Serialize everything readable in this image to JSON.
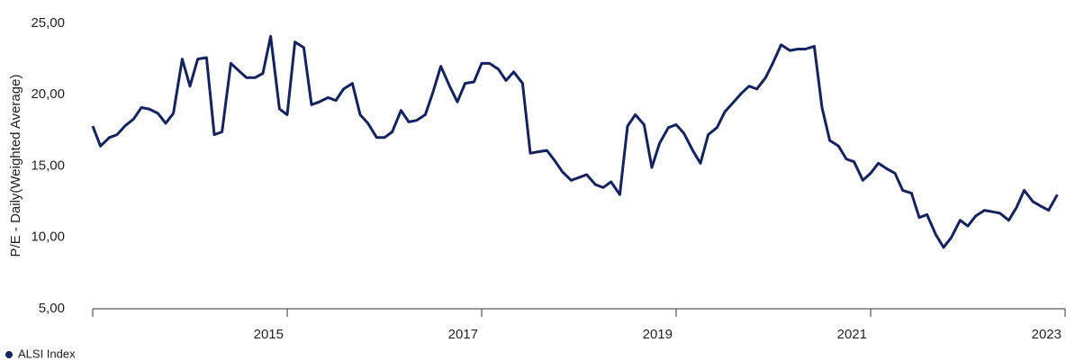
{
  "chart_data": {
    "type": "line",
    "y_label": "P/E - Daily(Weighted Average)",
    "x": [
      2013,
      2013.08,
      2013.17,
      2013.25,
      2013.33,
      2013.42,
      2013.5,
      2013.58,
      2013.67,
      2013.75,
      2013.83,
      2013.92,
      2014,
      2014.08,
      2014.17,
      2014.25,
      2014.33,
      2014.42,
      2014.5,
      2014.58,
      2014.67,
      2014.75,
      2014.83,
      2014.92,
      2015,
      2015.08,
      2015.17,
      2015.25,
      2015.33,
      2015.42,
      2015.5,
      2015.58,
      2015.67,
      2015.75,
      2015.83,
      2015.92,
      2016,
      2016.08,
      2016.17,
      2016.25,
      2016.33,
      2016.42,
      2016.5,
      2016.58,
      2016.67,
      2016.75,
      2016.83,
      2016.92,
      2017,
      2017.08,
      2017.17,
      2017.25,
      2017.33,
      2017.42,
      2017.5,
      2017.58,
      2017.67,
      2017.75,
      2017.83,
      2017.92,
      2018,
      2018.08,
      2018.17,
      2018.25,
      2018.33,
      2018.42,
      2018.5,
      2018.58,
      2018.67,
      2018.75,
      2018.83,
      2018.92,
      2019,
      2019.08,
      2019.17,
      2019.25,
      2019.33,
      2019.42,
      2019.5,
      2019.58,
      2019.67,
      2019.75,
      2019.83,
      2019.92,
      2020,
      2020.08,
      2020.17,
      2020.25,
      2020.33,
      2020.42,
      2020.5,
      2020.58,
      2020.67,
      2020.75,
      2020.83,
      2020.92,
      2021,
      2021.08,
      2021.17,
      2021.25,
      2021.33,
      2021.42,
      2021.5,
      2021.58,
      2021.67,
      2021.75,
      2021.83,
      2021.92,
      2022,
      2022.08,
      2022.17,
      2022.25,
      2022.33,
      2022.42,
      2022.5,
      2022.58,
      2022.67,
      2022.75,
      2022.83,
      2022.92
    ],
    "series": [
      {
        "name": "ALSI Index",
        "color": "#14225e",
        "values": [
          17.8,
          16.4,
          17.0,
          17.2,
          17.8,
          18.3,
          19.1,
          19.0,
          18.7,
          18.0,
          18.7,
          22.5,
          20.6,
          22.5,
          22.6,
          17.2,
          17.4,
          22.2,
          21.7,
          21.2,
          21.2,
          21.5,
          24.1,
          19.0,
          18.6,
          23.7,
          23.3,
          19.3,
          19.5,
          19.8,
          19.6,
          20.4,
          20.8,
          18.6,
          18.0,
          17.0,
          17.0,
          17.4,
          18.9,
          18.1,
          18.2,
          18.6,
          20.2,
          22.0,
          20.6,
          19.5,
          20.8,
          20.9,
          22.2,
          22.2,
          21.8,
          21.0,
          21.6,
          20.8,
          15.9,
          16.0,
          16.1,
          15.4,
          14.6,
          14.0,
          14.2,
          14.4,
          13.7,
          13.5,
          13.9,
          13.0,
          17.8,
          18.6,
          17.9,
          14.9,
          16.6,
          17.7,
          17.9,
          17.3,
          16.1,
          15.2,
          17.2,
          17.7,
          18.8,
          19.4,
          20.1,
          20.6,
          20.4,
          21.2,
          22.3,
          23.5,
          23.1,
          23.2,
          23.2,
          23.4,
          19.1,
          16.8,
          16.4,
          15.5,
          15.3,
          14.0,
          14.5,
          15.2,
          14.8,
          14.5,
          13.3,
          13.1,
          11.4,
          11.6,
          10.2,
          9.3,
          10.0,
          11.2,
          10.8,
          11.5,
          11.9,
          11.8,
          11.7,
          11.2,
          12.1,
          13.3,
          12.5,
          12.2,
          11.9,
          13.0
        ]
      }
    ],
    "xlim": [
      2013,
      2023
    ],
    "xticks": [
      2015,
      2017,
      2019,
      2021,
      2023
    ],
    "ylim": [
      5,
      25
    ],
    "yticks": [
      {
        "value": 5,
        "label": "5,00"
      },
      {
        "value": 10,
        "label": "10,00"
      },
      {
        "value": 15,
        "label": "15,00"
      },
      {
        "value": 20,
        "label": "20,00"
      },
      {
        "value": 25,
        "label": "25,00"
      }
    ],
    "grid": false
  }
}
